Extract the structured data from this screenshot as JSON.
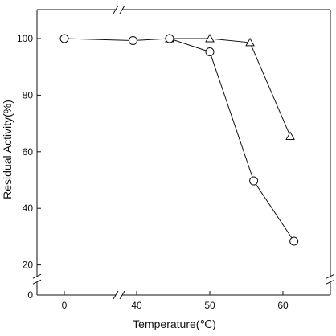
{
  "chart_data": {
    "type": "line",
    "xlabel": "Temperature(℃)",
    "ylabel": "Residual Activity(%)",
    "x_ticks": [
      0,
      40,
      50,
      60
    ],
    "y_ticks": [
      0,
      20,
      40,
      60,
      80,
      100
    ],
    "x_axis_break": "between 0 and 40",
    "y_axis_break": "between 0 and 20",
    "xlim": [
      -3,
      66
    ],
    "ylim": [
      16,
      110
    ],
    "grid": false,
    "series": [
      {
        "marker": "circle",
        "points": [
          {
            "x": 0,
            "y": 100
          },
          {
            "x": 39.5,
            "y": 99.3
          },
          {
            "x": 44.5,
            "y": 100
          },
          {
            "x": 50,
            "y": 95.3
          },
          {
            "x": 56,
            "y": 49.7
          },
          {
            "x": 61.5,
            "y": 28.4
          }
        ]
      },
      {
        "marker": "triangle",
        "points": [
          {
            "x": 44.5,
            "y": 100
          },
          {
            "x": 50,
            "y": 100
          },
          {
            "x": 55.5,
            "y": 98.6
          },
          {
            "x": 61,
            "y": 65.5
          }
        ]
      }
    ]
  }
}
